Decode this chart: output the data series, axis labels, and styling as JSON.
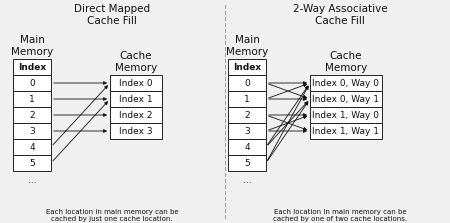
{
  "left_title": "Direct Mapped\nCache Fill",
  "right_title": "2-Way Associative\nCache Fill",
  "left_mm_label": "Main\nMemory",
  "right_mm_label": "Main\nMemory",
  "left_cache_label": "Cache\nMemory",
  "right_cache_label": "Cache\nMemory",
  "mm_rows": [
    "Index",
    "0",
    "1",
    "2",
    "3",
    "4",
    "5"
  ],
  "mm_dots": "...",
  "left_cache_rows": [
    "Index 0",
    "Index 1",
    "Index 2",
    "Index 3"
  ],
  "right_cache_rows": [
    "Index 0, Way 0",
    "Index 0, Way 1",
    "Index 1, Way 0",
    "Index 1, Way 1"
  ],
  "left_caption": "Each location in main memory can be\ncached by just one cache location.",
  "right_caption": "Each location in main memory can be\ncached by one of two cache locations.",
  "bg_color": "#f0f0f0",
  "box_color": "#ffffff",
  "border_color": "#222222",
  "text_color": "#111111",
  "arrow_color": "#111111",
  "divider_color": "#999999",
  "title_fontsize": 7.5,
  "label_fontsize": 7.5,
  "cell_fontsize": 6.5,
  "caption_fontsize": 5.0
}
